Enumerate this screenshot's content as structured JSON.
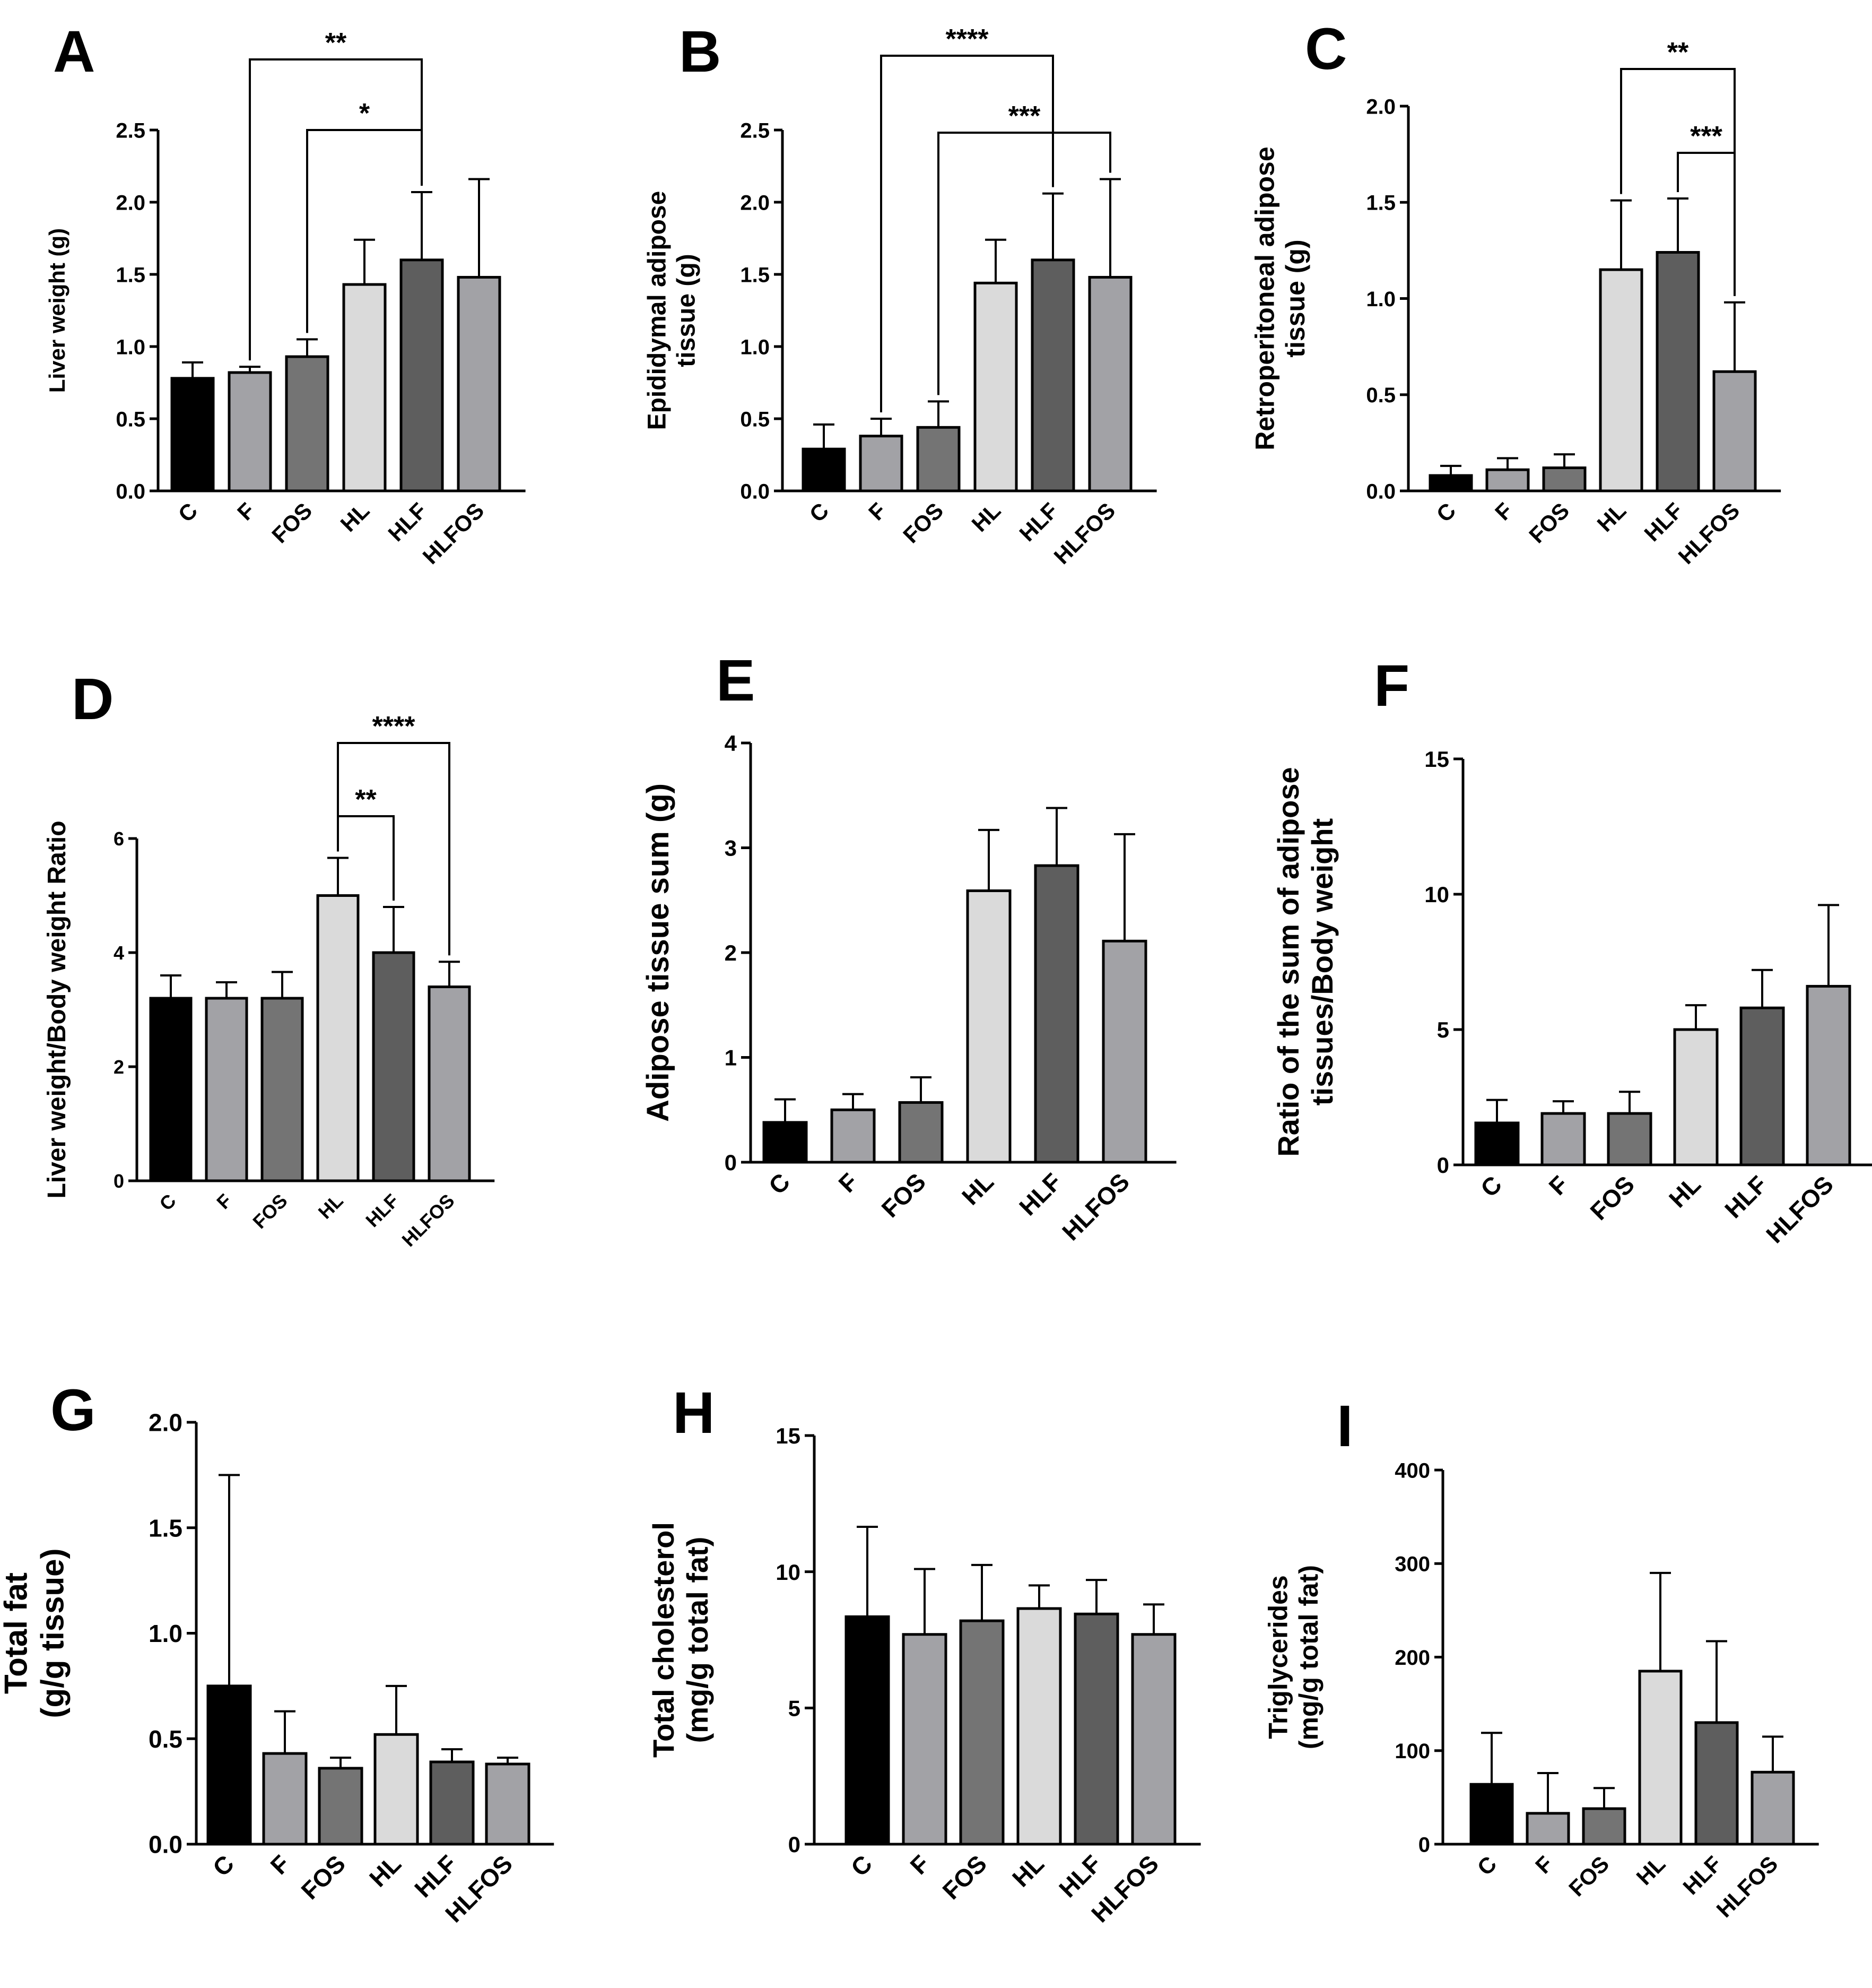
{
  "categories": [
    "C",
    "F",
    "FOS",
    "HL",
    "HLF",
    "HLFOS"
  ],
  "bar_colors": [
    "#000000",
    "#a2a2a6",
    "#747474",
    "#dadada",
    "#5e5e5e",
    "#a2a2a6"
  ],
  "chart_data": [
    {
      "panel": "A",
      "type": "bar",
      "ylabel": [
        "Liver weight (g)"
      ],
      "ylim": [
        0,
        2.5
      ],
      "ticks": [
        "0.0",
        "0.5",
        "1.0",
        "1.5",
        "2.0",
        "2.5"
      ],
      "categories": [
        "C",
        "F",
        "FOS",
        "HL",
        "HLF",
        "HLFOS"
      ],
      "values": [
        0.78,
        0.82,
        0.93,
        1.43,
        1.6,
        1.48
      ],
      "errors": [
        0.11,
        0.04,
        0.12,
        0.31,
        0.47,
        0.68
      ],
      "significance": [
        {
          "from": 1,
          "to": 4,
          "label": "**"
        },
        {
          "from": 2,
          "to": 4,
          "label": "*"
        }
      ]
    },
    {
      "panel": "B",
      "type": "bar",
      "ylabel": [
        "Epididymal adipose",
        "tissue (g)"
      ],
      "ylim": [
        0,
        2.5
      ],
      "ticks": [
        "0.0",
        "0.5",
        "1.0",
        "1.5",
        "2.0",
        "2.5"
      ],
      "categories": [
        "C",
        "F",
        "FOS",
        "HL",
        "HLF",
        "HLFOS"
      ],
      "values": [
        0.29,
        0.38,
        0.44,
        1.44,
        1.6,
        1.48
      ],
      "errors": [
        0.17,
        0.12,
        0.18,
        0.3,
        0.46,
        0.68
      ],
      "significance": [
        {
          "from": 1,
          "to": 4,
          "label": "****"
        },
        {
          "from": 2,
          "to": 5,
          "label": "***"
        }
      ]
    },
    {
      "panel": "C",
      "type": "bar",
      "ylabel": [
        "Retroperitoneal adipose",
        "tissue (g)"
      ],
      "ylim": [
        0,
        2.0
      ],
      "ticks": [
        "0.0",
        "0.5",
        "1.0",
        "1.5",
        "2.0"
      ],
      "categories": [
        "C",
        "F",
        "FOS",
        "HL",
        "HLF",
        "HLFOS"
      ],
      "values": [
        0.08,
        0.11,
        0.12,
        1.15,
        1.24,
        0.62
      ],
      "errors": [
        0.05,
        0.06,
        0.07,
        0.36,
        0.28,
        0.36
      ],
      "significance": [
        {
          "from": 3,
          "to": 5,
          "label": "**"
        },
        {
          "from": 4,
          "to": 5,
          "label": "***"
        }
      ]
    },
    {
      "panel": "D",
      "type": "bar",
      "ylabel": [
        "Liver weight/Body weight Ratio"
      ],
      "ylim": [
        0,
        6
      ],
      "ticks": [
        "0",
        "2",
        "4",
        "6"
      ],
      "categories": [
        "C",
        "F",
        "FOS",
        "HL",
        "HLF",
        "HLFOS"
      ],
      "values": [
        3.2,
        3.2,
        3.2,
        5.0,
        4.0,
        3.4
      ],
      "errors": [
        0.4,
        0.28,
        0.46,
        0.66,
        0.8,
        0.44
      ],
      "significance": [
        {
          "from": 3,
          "to": 5,
          "label": "****"
        },
        {
          "from": 3,
          "to": 4,
          "label": "**"
        }
      ]
    },
    {
      "panel": "E",
      "type": "bar",
      "ylabel": [
        "Adipose tissue sum (g)"
      ],
      "ylim": [
        0,
        4
      ],
      "ticks": [
        "0",
        "1",
        "2",
        "3",
        "4"
      ],
      "categories": [
        "C",
        "F",
        "FOS",
        "HL",
        "HLF",
        "HLFOS"
      ],
      "values": [
        0.38,
        0.5,
        0.57,
        2.59,
        2.83,
        2.11
      ],
      "errors": [
        0.22,
        0.15,
        0.24,
        0.58,
        0.55,
        1.02
      ],
      "significance": []
    },
    {
      "panel": "F",
      "type": "bar",
      "ylabel": [
        "Ratio of the sum of adipose",
        "tissues/Body weight"
      ],
      "ylim": [
        0,
        15
      ],
      "ticks": [
        "0",
        "5",
        "10",
        "15"
      ],
      "categories": [
        "C",
        "F",
        "FOS",
        "HL",
        "HLF",
        "HLFOS"
      ],
      "values": [
        1.55,
        1.9,
        1.9,
        5.0,
        5.8,
        6.6
      ],
      "errors": [
        0.85,
        0.45,
        0.8,
        0.9,
        1.4,
        3.0
      ],
      "significance": []
    },
    {
      "panel": "G",
      "type": "bar",
      "ylabel": [
        "Total fat",
        "(g/g tissue)"
      ],
      "ylim": [
        0,
        2.0
      ],
      "ticks": [
        "0.0",
        "0.5",
        "1.0",
        "1.5",
        "2.0"
      ],
      "categories": [
        "C",
        "F",
        "FOS",
        "HL",
        "HLF",
        "HLFOS"
      ],
      "values": [
        0.75,
        0.43,
        0.36,
        0.52,
        0.39,
        0.38
      ],
      "errors": [
        1.0,
        0.2,
        0.05,
        0.23,
        0.06,
        0.03
      ],
      "significance": []
    },
    {
      "panel": "H",
      "type": "bar",
      "ylabel": [
        "Total cholesterol",
        "(mg/g total fat)"
      ],
      "ylim": [
        0,
        15
      ],
      "ticks": [
        "0",
        "5",
        "10",
        "15"
      ],
      "categories": [
        "C",
        "F",
        "FOS",
        "HL",
        "HLF",
        "HLFOS"
      ],
      "values": [
        8.35,
        7.7,
        8.2,
        8.65,
        8.45,
        7.7
      ],
      "errors": [
        3.3,
        2.4,
        2.05,
        0.85,
        1.25,
        1.1
      ],
      "significance": []
    },
    {
      "panel": "I",
      "type": "bar",
      "ylabel": [
        "Triglycerides",
        "(mg/g total fat)"
      ],
      "ylim": [
        0,
        400
      ],
      "ticks": [
        "0",
        "100",
        "200",
        "300",
        "400"
      ],
      "categories": [
        "C",
        "F",
        "FOS",
        "HL",
        "HLF",
        "HLFOS"
      ],
      "values": [
        64,
        33,
        38,
        185,
        130,
        77
      ],
      "errors": [
        55,
        43,
        22,
        105,
        87,
        38
      ],
      "significance": []
    }
  ]
}
